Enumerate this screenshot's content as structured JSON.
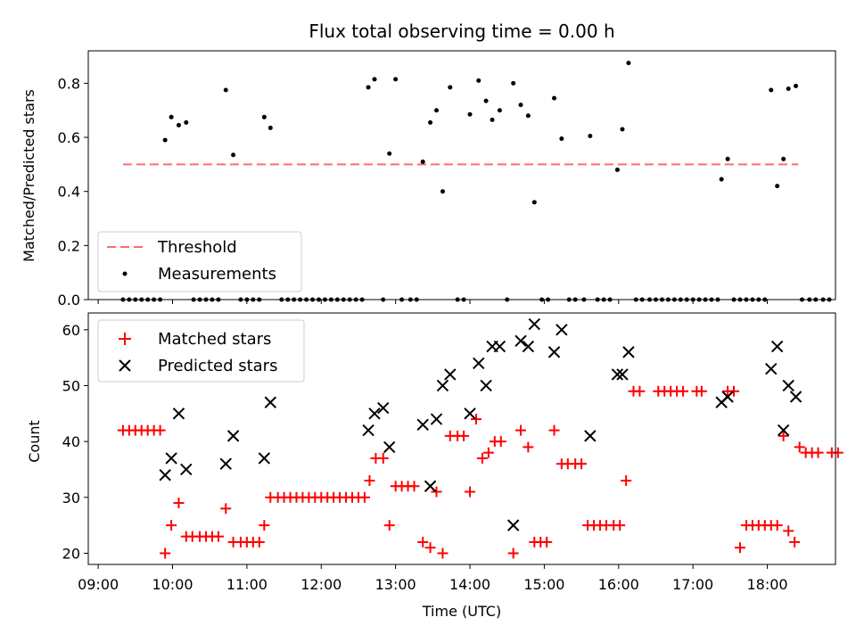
{
  "chart_data": [
    {
      "type": "scatter",
      "title": "Flux total observing time = 0.00 h",
      "xlabel": "",
      "ylabel": "Matched/Predicted stars",
      "xlim": [
        "08:52",
        "18:55"
      ],
      "ylim": [
        0,
        0.92
      ],
      "yticks": [
        "0.0",
        "0.2",
        "0.4",
        "0.6",
        "0.8"
      ],
      "ytick_values": [
        0,
        0.2,
        0.4,
        0.6,
        0.8
      ],
      "legend_placement": "lower-left",
      "colors": {
        "threshold": "#ff6b6b",
        "measurements": "#000000"
      },
      "threshold": {
        "name": "Threshold",
        "value": 0.5,
        "x_start": "09:20",
        "x_end": "18:25"
      },
      "series": [
        {
          "name": "Measurements",
          "marker": "dot",
          "points": [
            [
              "09:20",
              0
            ],
            [
              "09:25",
              0
            ],
            [
              "09:30",
              0
            ],
            [
              "09:35",
              0
            ],
            [
              "09:40",
              0
            ],
            [
              "09:45",
              0
            ],
            [
              "09:50",
              0
            ],
            [
              "09:54",
              0.59
            ],
            [
              "09:59",
              0.675
            ],
            [
              "10:05",
              0.645
            ],
            [
              "10:11",
              0.655
            ],
            [
              "10:17",
              0
            ],
            [
              "10:22",
              0
            ],
            [
              "10:27",
              0
            ],
            [
              "10:32",
              0
            ],
            [
              "10:37",
              0
            ],
            [
              "10:43",
              0.775
            ],
            [
              "10:49",
              0.535
            ],
            [
              "10:55",
              0
            ],
            [
              "11:00",
              0
            ],
            [
              "11:05",
              0
            ],
            [
              "11:10",
              0
            ],
            [
              "11:14",
              0.675
            ],
            [
              "11:19",
              0.635
            ],
            [
              "11:28",
              0
            ],
            [
              "11:33",
              0
            ],
            [
              "11:38",
              0
            ],
            [
              "11:43",
              0
            ],
            [
              "11:48",
              0
            ],
            [
              "11:53",
              0
            ],
            [
              "11:58",
              0
            ],
            [
              "12:03",
              0
            ],
            [
              "12:08",
              0
            ],
            [
              "12:13",
              0
            ],
            [
              "12:18",
              0
            ],
            [
              "12:23",
              0
            ],
            [
              "12:28",
              0
            ],
            [
              "12:33",
              0
            ],
            [
              "12:38",
              0.785
            ],
            [
              "12:43",
              0.815
            ],
            [
              "12:50",
              0
            ],
            [
              "12:55",
              0.54
            ],
            [
              "13:00",
              0.815
            ],
            [
              "13:05",
              0
            ],
            [
              "13:12",
              0
            ],
            [
              "13:17",
              0
            ],
            [
              "13:22",
              0.51
            ],
            [
              "13:28",
              0.655
            ],
            [
              "13:33",
              0.7
            ],
            [
              "13:38",
              0.4
            ],
            [
              "13:44",
              0.785
            ],
            [
              "13:50",
              0
            ],
            [
              "13:55",
              0
            ],
            [
              "14:00",
              0.685
            ],
            [
              "14:07",
              0.81
            ],
            [
              "14:13",
              0.735
            ],
            [
              "14:18",
              0.665
            ],
            [
              "14:24",
              0.7
            ],
            [
              "14:30",
              0
            ],
            [
              "14:35",
              0.8
            ],
            [
              "14:41",
              0.72
            ],
            [
              "14:47",
              0.68
            ],
            [
              "14:52",
              0.36
            ],
            [
              "14:58",
              0
            ],
            [
              "15:03",
              0
            ],
            [
              "15:08",
              0.745
            ],
            [
              "15:14",
              0.595
            ],
            [
              "15:20",
              0
            ],
            [
              "15:25",
              0
            ],
            [
              "15:32",
              0
            ],
            [
              "15:37",
              0.605
            ],
            [
              "15:43",
              0
            ],
            [
              "15:48",
              0
            ],
            [
              "15:53",
              0
            ],
            [
              "15:59",
              0.48
            ],
            [
              "16:03",
              0.63
            ],
            [
              "16:08",
              0.875
            ],
            [
              "16:14",
              0
            ],
            [
              "16:19",
              0
            ],
            [
              "16:25",
              0
            ],
            [
              "16:30",
              0
            ],
            [
              "16:35",
              0
            ],
            [
              "16:40",
              0
            ],
            [
              "16:45",
              0
            ],
            [
              "16:50",
              0
            ],
            [
              "16:55",
              0
            ],
            [
              "17:00",
              0
            ],
            [
              "17:05",
              0
            ],
            [
              "17:10",
              0
            ],
            [
              "17:15",
              0
            ],
            [
              "17:20",
              0
            ],
            [
              "17:23",
              0.445
            ],
            [
              "17:28",
              0.52
            ],
            [
              "17:33",
              0
            ],
            [
              "17:38",
              0
            ],
            [
              "17:43",
              0
            ],
            [
              "17:48",
              0
            ],
            [
              "17:53",
              0
            ],
            [
              "17:58",
              0
            ],
            [
              "18:03",
              0.775
            ],
            [
              "18:08",
              0.42
            ],
            [
              "18:13",
              0.52
            ],
            [
              "18:17",
              0.78
            ],
            [
              "18:23",
              0.79
            ],
            [
              "18:28",
              0
            ],
            [
              "18:34",
              0
            ],
            [
              "18:39",
              0
            ],
            [
              "18:45",
              0
            ],
            [
              "18:50",
              0
            ]
          ]
        }
      ]
    },
    {
      "type": "scatter",
      "title": "",
      "xlabel": "Time (UTC)",
      "ylabel": "Count",
      "xlim": [
        "08:52",
        "18:55"
      ],
      "ylim": [
        18.0,
        63.0
      ],
      "yticks": [
        "20",
        "30",
        "40",
        "50",
        "60"
      ],
      "ytick_values": [
        20,
        30,
        40,
        50,
        60
      ],
      "xticks": [
        "09:00",
        "10:00",
        "11:00",
        "12:00",
        "13:00",
        "14:00",
        "15:00",
        "16:00",
        "17:00",
        "18:00"
      ],
      "legend_placement": "upper-left",
      "colors": {
        "matched": "#ff0000",
        "predicted": "#000000"
      },
      "series": [
        {
          "name": "Matched stars",
          "marker": "plus",
          "points": [
            [
              "09:20",
              42
            ],
            [
              "09:25",
              42
            ],
            [
              "09:30",
              42
            ],
            [
              "09:35",
              42
            ],
            [
              "09:40",
              42
            ],
            [
              "09:45",
              42
            ],
            [
              "09:50",
              42
            ],
            [
              "09:54",
              20
            ],
            [
              "09:59",
              25
            ],
            [
              "10:05",
              29
            ],
            [
              "10:11",
              23
            ],
            [
              "10:16",
              23
            ],
            [
              "10:22",
              23
            ],
            [
              "10:27",
              23
            ],
            [
              "10:32",
              23
            ],
            [
              "10:37",
              23
            ],
            [
              "10:43",
              28
            ],
            [
              "10:49",
              22
            ],
            [
              "10:55",
              22
            ],
            [
              "11:00",
              22
            ],
            [
              "11:05",
              22
            ],
            [
              "11:10",
              22
            ],
            [
              "11:14",
              25
            ],
            [
              "11:19",
              30
            ],
            [
              "11:25",
              30
            ],
            [
              "11:30",
              30
            ],
            [
              "11:35",
              30
            ],
            [
              "11:40",
              30
            ],
            [
              "11:45",
              30
            ],
            [
              "11:50",
              30
            ],
            [
              "11:55",
              30
            ],
            [
              "12:00",
              30
            ],
            [
              "12:05",
              30
            ],
            [
              "12:10",
              30
            ],
            [
              "12:15",
              30
            ],
            [
              "12:20",
              30
            ],
            [
              "12:25",
              30
            ],
            [
              "12:30",
              30
            ],
            [
              "12:35",
              30
            ],
            [
              "12:39",
              33
            ],
            [
              "12:44",
              37
            ],
            [
              "12:50",
              37
            ],
            [
              "12:55",
              25
            ],
            [
              "13:00",
              32
            ],
            [
              "13:05",
              32
            ],
            [
              "13:10",
              32
            ],
            [
              "13:15",
              32
            ],
            [
              "13:22",
              22
            ],
            [
              "13:28",
              21
            ],
            [
              "13:33",
              31
            ],
            [
              "13:38",
              20
            ],
            [
              "13:44",
              41
            ],
            [
              "13:50",
              41
            ],
            [
              "13:55",
              41
            ],
            [
              "14:00",
              31
            ],
            [
              "14:05",
              44
            ],
            [
              "14:10",
              37
            ],
            [
              "14:15",
              38
            ],
            [
              "14:20",
              40
            ],
            [
              "14:25",
              40
            ],
            [
              "14:35",
              20
            ],
            [
              "14:41",
              42
            ],
            [
              "14:47",
              39
            ],
            [
              "14:52",
              22
            ],
            [
              "14:57",
              22
            ],
            [
              "15:02",
              22
            ],
            [
              "15:08",
              42
            ],
            [
              "15:14",
              36
            ],
            [
              "15:19",
              36
            ],
            [
              "15:25",
              36
            ],
            [
              "15:30",
              36
            ],
            [
              "15:35",
              25
            ],
            [
              "15:40",
              25
            ],
            [
              "15:45",
              25
            ],
            [
              "15:50",
              25
            ],
            [
              "15:56",
              25
            ],
            [
              "16:01",
              25
            ],
            [
              "16:06",
              33
            ],
            [
              "16:12",
              49
            ],
            [
              "16:17",
              49
            ],
            [
              "16:32",
              49
            ],
            [
              "16:37",
              49
            ],
            [
              "16:42",
              49
            ],
            [
              "16:47",
              49
            ],
            [
              "16:52",
              49
            ],
            [
              "17:03",
              49
            ],
            [
              "17:07",
              49
            ],
            [
              "17:28",
              49
            ],
            [
              "17:33",
              49
            ],
            [
              "17:38",
              21
            ],
            [
              "17:43",
              25
            ],
            [
              "17:48",
              25
            ],
            [
              "17:53",
              25
            ],
            [
              "17:58",
              25
            ],
            [
              "18:03",
              25
            ],
            [
              "18:08",
              25
            ],
            [
              "18:13",
              41
            ],
            [
              "18:17",
              24
            ],
            [
              "18:22",
              22
            ],
            [
              "18:26",
              39
            ],
            [
              "18:31",
              38
            ],
            [
              "18:36",
              38
            ],
            [
              "18:41",
              38
            ],
            [
              "18:52",
              38
            ],
            [
              "18:57",
              38
            ]
          ]
        },
        {
          "name": "Predicted stars",
          "marker": "x",
          "points": [
            [
              "09:54",
              34
            ],
            [
              "09:59",
              37
            ],
            [
              "10:05",
              45
            ],
            [
              "10:11",
              35
            ],
            [
              "10:43",
              36
            ],
            [
              "10:49",
              41
            ],
            [
              "11:14",
              37
            ],
            [
              "11:19",
              47
            ],
            [
              "12:38",
              42
            ],
            [
              "12:43",
              45
            ],
            [
              "12:50",
              46
            ],
            [
              "12:55",
              39
            ],
            [
              "13:22",
              43
            ],
            [
              "13:28",
              32
            ],
            [
              "13:33",
              44
            ],
            [
              "13:38",
              50
            ],
            [
              "13:44",
              52
            ],
            [
              "14:00",
              45
            ],
            [
              "14:07",
              54
            ],
            [
              "14:13",
              50
            ],
            [
              "14:18",
              57
            ],
            [
              "14:24",
              57
            ],
            [
              "14:35",
              25
            ],
            [
              "14:41",
              58
            ],
            [
              "14:47",
              57
            ],
            [
              "14:52",
              61
            ],
            [
              "15:08",
              56
            ],
            [
              "15:14",
              60
            ],
            [
              "15:37",
              41
            ],
            [
              "15:59",
              52
            ],
            [
              "16:03",
              52
            ],
            [
              "16:08",
              56
            ],
            [
              "17:23",
              47
            ],
            [
              "17:28",
              48
            ],
            [
              "18:03",
              53
            ],
            [
              "18:08",
              57
            ],
            [
              "18:13",
              42
            ],
            [
              "18:17",
              50
            ],
            [
              "18:23",
              48
            ]
          ]
        }
      ]
    }
  ]
}
